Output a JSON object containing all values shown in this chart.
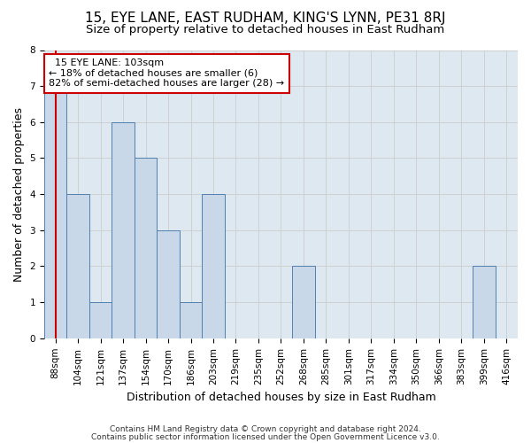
{
  "title": "15, EYE LANE, EAST RUDHAM, KING'S LYNN, PE31 8RJ",
  "subtitle": "Size of property relative to detached houses in East Rudham",
  "xlabel": "Distribution of detached houses by size in East Rudham",
  "ylabel": "Number of detached properties",
  "footnote1": "Contains HM Land Registry data © Crown copyright and database right 2024.",
  "footnote2": "Contains public sector information licensed under the Open Government Licence v3.0.",
  "categories": [
    "88sqm",
    "104sqm",
    "121sqm",
    "137sqm",
    "154sqm",
    "170sqm",
    "186sqm",
    "203sqm",
    "219sqm",
    "235sqm",
    "252sqm",
    "268sqm",
    "285sqm",
    "301sqm",
    "317sqm",
    "334sqm",
    "350sqm",
    "366sqm",
    "383sqm",
    "399sqm",
    "416sqm"
  ],
  "values": [
    7,
    4,
    1,
    6,
    5,
    3,
    1,
    4,
    0,
    0,
    0,
    2,
    0,
    0,
    0,
    0,
    0,
    0,
    0,
    2,
    0
  ],
  "bar_color": "#c8d8e8",
  "bar_edge_color": "#5080b0",
  "annotation_box_text": "  15 EYE LANE: 103sqm  \n← 18% of detached houses are smaller (6)\n82% of semi-detached houses are larger (28) →",
  "annotation_line_color": "#cc0000",
  "annotation_box_edge_color": "#cc0000",
  "ylim": [
    0,
    8
  ],
  "yticks": [
    0,
    1,
    2,
    3,
    4,
    5,
    6,
    7,
    8
  ],
  "grid_color": "#cccccc",
  "background_color": "#dde8f0",
  "title_fontsize": 11,
  "subtitle_fontsize": 9.5,
  "axis_label_fontsize": 9,
  "tick_fontsize": 7.5,
  "footnote_fontsize": 6.5
}
